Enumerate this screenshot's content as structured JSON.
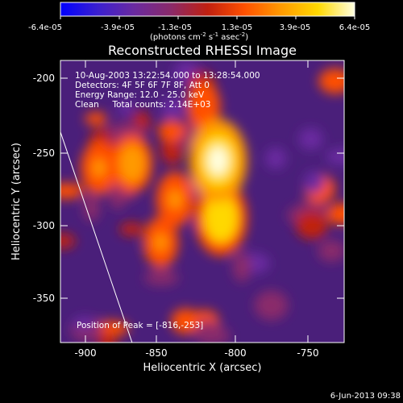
{
  "colorbar": {
    "tick_labels": [
      "-6.4e-05",
      "-3.9e-05",
      "-1.3e-05",
      "1.3e-05",
      "3.9e-05",
      "6.4e-05"
    ],
    "unit_text": "(photons cm",
    "unit_exp1": "-2",
    "unit_mid": " s",
    "unit_exp2": "-1",
    "unit_tail": " asec",
    "unit_exp3": "-2",
    "unit_close": ")",
    "color_stops": [
      "#0000ff",
      "#3a1fd0",
      "#6a2aa0",
      "#8a2a6a",
      "#c02010",
      "#ff5000",
      "#ff9a00",
      "#ffd800",
      "#ffffe0"
    ]
  },
  "plot": {
    "title": "Reconstructed RHESSI Image",
    "xlabel": "Heliocentric X (arcsec)",
    "ylabel": "Heliocentric Y (arcsec)",
    "x_ticks": [
      "-900",
      "-850",
      "-800",
      "-750"
    ],
    "y_ticks": [
      "-200",
      "-250",
      "-300",
      "-350"
    ],
    "info_lines": [
      "10-Aug-2003 13:22:54.000 to 13:28:54.000",
      "Detectors: 4F 5F 6F 7F 8F, Att 0",
      "Energy Range: 12.0 - 25.0 keV",
      "Clean     Total counts: 2.14E+03"
    ],
    "peak_label": "Position of Peak = [-816,-253]"
  },
  "chart_data": {
    "type": "heatmap",
    "title": "Reconstructed RHESSI Image",
    "xlabel": "Heliocentric X (arcsec)",
    "ylabel": "Heliocentric Y (arcsec)",
    "xlim": [
      -920,
      -722
    ],
    "ylim": [
      -380,
      -183
    ],
    "color_range": [
      -6.4e-05,
      6.4e-05
    ],
    "peak_position": [
      -816,
      -253
    ],
    "bright_sources": [
      {
        "x": -810,
        "y": -253,
        "level": 6.4e-05
      },
      {
        "x": -808,
        "y": -293,
        "level": 5.5e-05
      },
      {
        "x": -820,
        "y": -215,
        "level": 2.2e-05
      },
      {
        "x": -870,
        "y": -255,
        "level": 3.5e-05
      },
      {
        "x": -840,
        "y": -280,
        "level": 3e-05
      },
      {
        "x": -850,
        "y": -310,
        "level": 2.5e-05
      },
      {
        "x": -893,
        "y": -258,
        "level": 2.8e-05
      }
    ],
    "limb_line": [
      [
        -920,
        -233
      ],
      [
        -870,
        -380
      ]
    ]
  },
  "footer": {
    "date": "6-Jun-2013 09:38"
  }
}
